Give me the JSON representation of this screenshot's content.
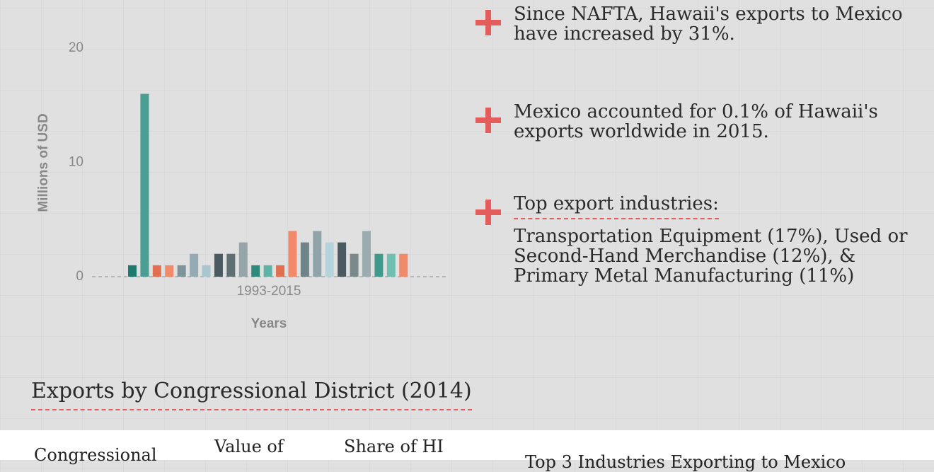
{
  "chart_data": {
    "type": "bar",
    "values": [
      1,
      16,
      1,
      1,
      1,
      2,
      1,
      2,
      2,
      3,
      1,
      1,
      1,
      4,
      3,
      4,
      3,
      3,
      2,
      4,
      2,
      2,
      2
    ],
    "colors": [
      "#1f7a6e",
      "#4a9e93",
      "#e0704f",
      "#ef8a6a",
      "#7f939a",
      "#95aab2",
      "#a9c6cf",
      "#4a5a60",
      "#5f7073",
      "#95a5a8",
      "#2f8a7e",
      "#5fb3a6",
      "#e0704f",
      "#f2896b",
      "#6f8488",
      "#8fa3a8",
      "#b5d3db",
      "#4a5a60",
      "#7a8a8c",
      "#9aacae",
      "#3f9a8c",
      "#6fbfb2",
      "#ef8a6a"
    ],
    "xtick_label": "1993-2015",
    "xlabel": "Years",
    "ylabel": "Millions of USD",
    "ylim": [
      0,
      24
    ],
    "yticks": [
      0,
      10,
      20
    ]
  },
  "facts": [
    {
      "text": "Since NAFTA, Hawaii's exports to Mexico have increased by 31%."
    },
    {
      "text": "Mexico accounted for 0.1% of Hawaii's exports worldwide in 2015."
    },
    {
      "text": "Top export industries:",
      "detail": "Transportation Equipment (17%), Used or Second-Hand Merchandise (12%), & Primary Metal Manufacturing (11%)"
    }
  ],
  "section_title": "Exports by Congressional District (2014)",
  "table": {
    "headers": [
      "Congressional",
      "Value of",
      "Share of HI",
      "Top 3 Industries Exporting to Mexico"
    ]
  }
}
